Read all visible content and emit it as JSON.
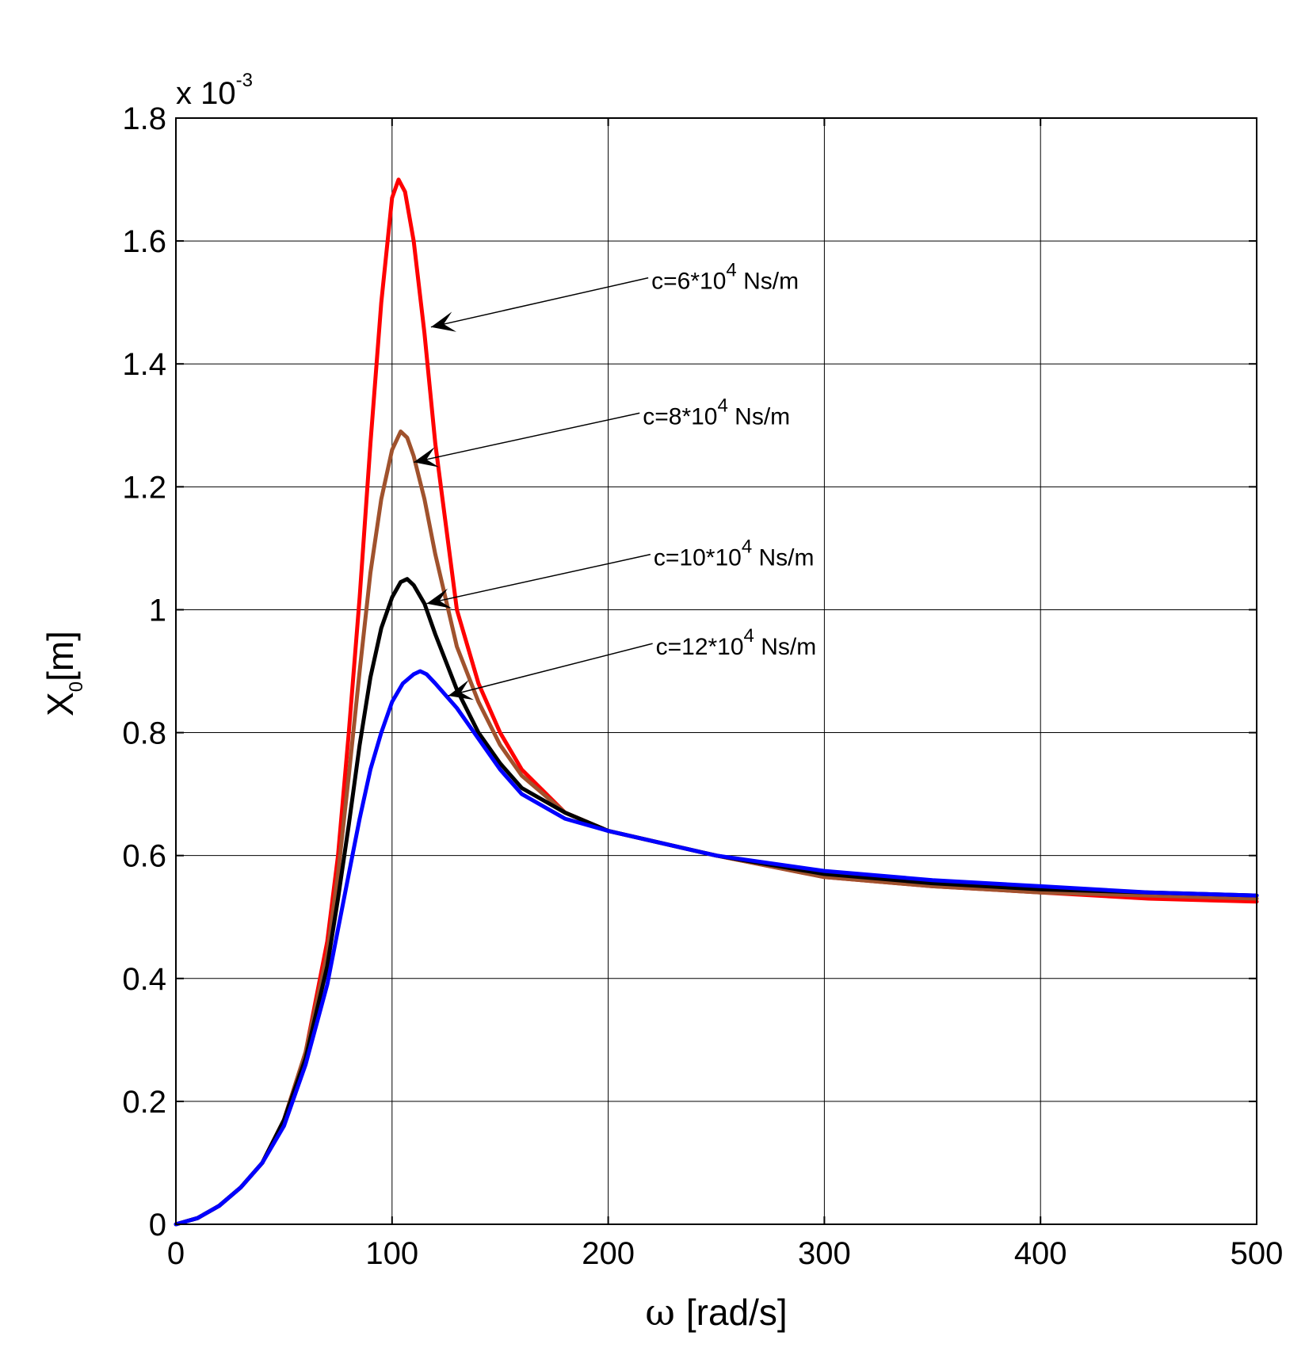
{
  "chart_data": {
    "type": "line",
    "title": "",
    "xlabel": {
      "symbol": "ω",
      "text": "[rad/s]"
    },
    "ylabel": {
      "base": "X",
      "subscript": "0",
      "unit": "[m]"
    },
    "y_exponent": {
      "prefix": "x 10",
      "power": "-3"
    },
    "xlim": [
      0,
      500
    ],
    "ylim": [
      0,
      1.8
    ],
    "xticks": [
      "0",
      "100",
      "200",
      "300",
      "400",
      "500"
    ],
    "yticks": [
      "0",
      "0.2",
      "0.4",
      "0.6",
      "0.8",
      "1",
      "1.2",
      "1.4",
      "1.6",
      "1.8"
    ],
    "grid": true,
    "series": [
      {
        "name": "c=6*10^4 Ns/m",
        "color": "#ff0000",
        "x": [
          0,
          10,
          20,
          30,
          40,
          50,
          60,
          70,
          75,
          80,
          85,
          90,
          95,
          100,
          103,
          106,
          110,
          115,
          120,
          130,
          140,
          150,
          160,
          180,
          200,
          250,
          300,
          350,
          400,
          450,
          500
        ],
        "y": [
          0,
          0.01,
          0.03,
          0.06,
          0.1,
          0.17,
          0.28,
          0.46,
          0.6,
          0.8,
          1.02,
          1.27,
          1.5,
          1.67,
          1.7,
          1.68,
          1.6,
          1.45,
          1.27,
          1.0,
          0.88,
          0.8,
          0.74,
          0.67,
          0.64,
          0.6,
          0.565,
          0.55,
          0.54,
          0.53,
          0.525
        ]
      },
      {
        "name": "c=8*10^4 Ns/m",
        "color": "#a0522d",
        "x": [
          0,
          10,
          20,
          30,
          40,
          50,
          60,
          70,
          75,
          80,
          85,
          90,
          95,
          100,
          104,
          107,
          110,
          115,
          120,
          130,
          140,
          150,
          160,
          180,
          200,
          250,
          300,
          350,
          400,
          450,
          500
        ],
        "y": [
          0,
          0.01,
          0.03,
          0.06,
          0.1,
          0.17,
          0.28,
          0.44,
          0.57,
          0.73,
          0.9,
          1.06,
          1.18,
          1.26,
          1.29,
          1.28,
          1.25,
          1.18,
          1.09,
          0.94,
          0.85,
          0.78,
          0.73,
          0.67,
          0.64,
          0.6,
          0.565,
          0.55,
          0.54,
          0.535,
          0.53
        ]
      },
      {
        "name": "c=10*10^4 Ns/m",
        "color": "#000000",
        "x": [
          0,
          10,
          20,
          30,
          40,
          50,
          60,
          70,
          75,
          80,
          85,
          90,
          95,
          100,
          104,
          107,
          110,
          115,
          120,
          130,
          140,
          150,
          160,
          180,
          200,
          250,
          300,
          350,
          400,
          450,
          500
        ],
        "y": [
          0,
          0.01,
          0.03,
          0.06,
          0.1,
          0.17,
          0.27,
          0.42,
          0.53,
          0.65,
          0.78,
          0.89,
          0.97,
          1.02,
          1.045,
          1.05,
          1.04,
          1.01,
          0.96,
          0.87,
          0.8,
          0.75,
          0.71,
          0.67,
          0.64,
          0.6,
          0.57,
          0.555,
          0.545,
          0.54,
          0.535
        ]
      },
      {
        "name": "c=12*10^4 Ns/m",
        "color": "#0000ff",
        "x": [
          0,
          10,
          20,
          30,
          40,
          50,
          60,
          70,
          75,
          80,
          85,
          90,
          95,
          100,
          105,
          110,
          113,
          116,
          120,
          130,
          140,
          150,
          160,
          180,
          200,
          250,
          300,
          350,
          400,
          450,
          500
        ],
        "y": [
          0,
          0.01,
          0.03,
          0.06,
          0.1,
          0.16,
          0.26,
          0.39,
          0.48,
          0.57,
          0.66,
          0.74,
          0.8,
          0.85,
          0.88,
          0.895,
          0.9,
          0.895,
          0.88,
          0.84,
          0.79,
          0.74,
          0.7,
          0.66,
          0.64,
          0.6,
          0.575,
          0.56,
          0.55,
          0.54,
          0.535
        ]
      }
    ],
    "annotations": [
      {
        "prefix": "c=6*10",
        "power": "4",
        "suffix": " Ns/m",
        "anchor": [
          220,
          1.54
        ],
        "arrow_to": [
          118,
          1.46
        ]
      },
      {
        "prefix": "c=8*10",
        "power": "4",
        "suffix": " Ns/m",
        "anchor": [
          216,
          1.32
        ],
        "arrow_to": [
          110,
          1.24
        ]
      },
      {
        "prefix": "c=10*10",
        "power": "4",
        "suffix": " Ns/m",
        "anchor": [
          221,
          1.09
        ],
        "arrow_to": [
          116,
          1.01
        ]
      },
      {
        "prefix": "c=12*10",
        "power": "4",
        "suffix": " Ns/m",
        "anchor": [
          222,
          0.945
        ],
        "arrow_to": [
          126,
          0.86
        ]
      }
    ]
  }
}
